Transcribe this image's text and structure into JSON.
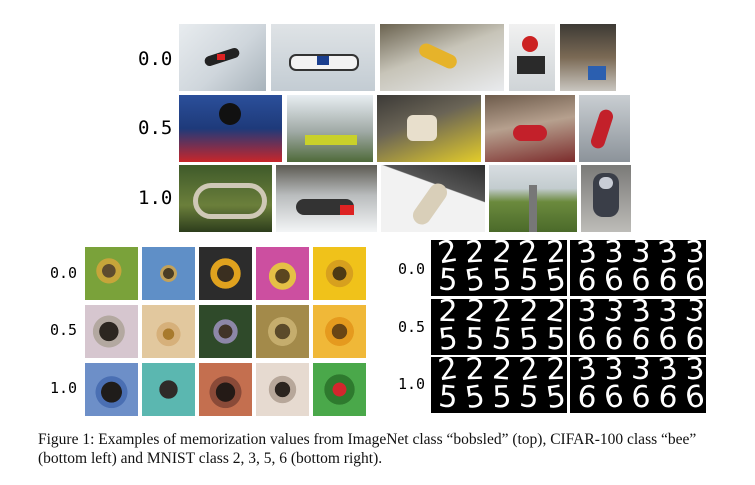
{
  "figure": {
    "caption": "Figure 1: Examples of memorization values from ImageNet class “bobsled” (top), CIFAR-100 class “bee” (bottom left) and MNIST class 2, 3, 5, 6 (bottom right)."
  },
  "imagenet": {
    "row_labels": [
      "0.0",
      "0.5",
      "1.0"
    ]
  },
  "cifar": {
    "row_labels": [
      "0.0",
      "0.5",
      "1.0"
    ]
  },
  "mnist": {
    "row_labels": [
      "0.0",
      "0.5",
      "1.0"
    ],
    "rows": [
      {
        "left": [
          "2",
          "2",
          "2",
          "2",
          "2",
          "5",
          "5",
          "5",
          "5",
          "5"
        ],
        "right": [
          "3",
          "3",
          "3",
          "3",
          "3",
          "6",
          "6",
          "6",
          "6",
          "6"
        ]
      },
      {
        "left": [
          "2",
          "2",
          "2",
          "2",
          "2",
          "5",
          "5",
          "5",
          "5",
          "5"
        ],
        "right": [
          "3",
          "3",
          "3",
          "3",
          "3",
          "6",
          "6",
          "6",
          "6",
          "6"
        ]
      },
      {
        "left": [
          "2",
          "2",
          "2",
          "2",
          "2",
          "5",
          "5",
          "5",
          "5",
          "5"
        ],
        "right": [
          "3",
          "3",
          "3",
          "3",
          "3",
          "6",
          "6",
          "6",
          "6",
          "6"
        ]
      }
    ]
  }
}
